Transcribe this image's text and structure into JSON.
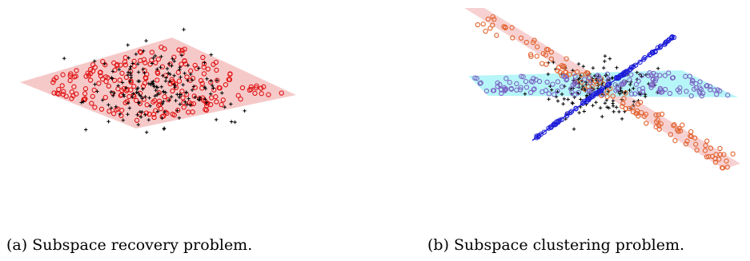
{
  "captions": {
    "a": "(a) Subspace recovery problem.",
    "b": "(b) Subspace clustering problem."
  },
  "colors": {
    "plane_red": "#f6c9c9",
    "plane_cyan": "#9ef2f5",
    "inlier_red": "#e01010",
    "inlier_orange": "#e2602a",
    "inlier_purple": "#7b64c4",
    "line_blue": "#1d1dd8",
    "outlier": "#000000"
  },
  "figure_elements": {
    "markers": {
      "inlier": "circle",
      "outlier": "plus"
    }
  }
}
